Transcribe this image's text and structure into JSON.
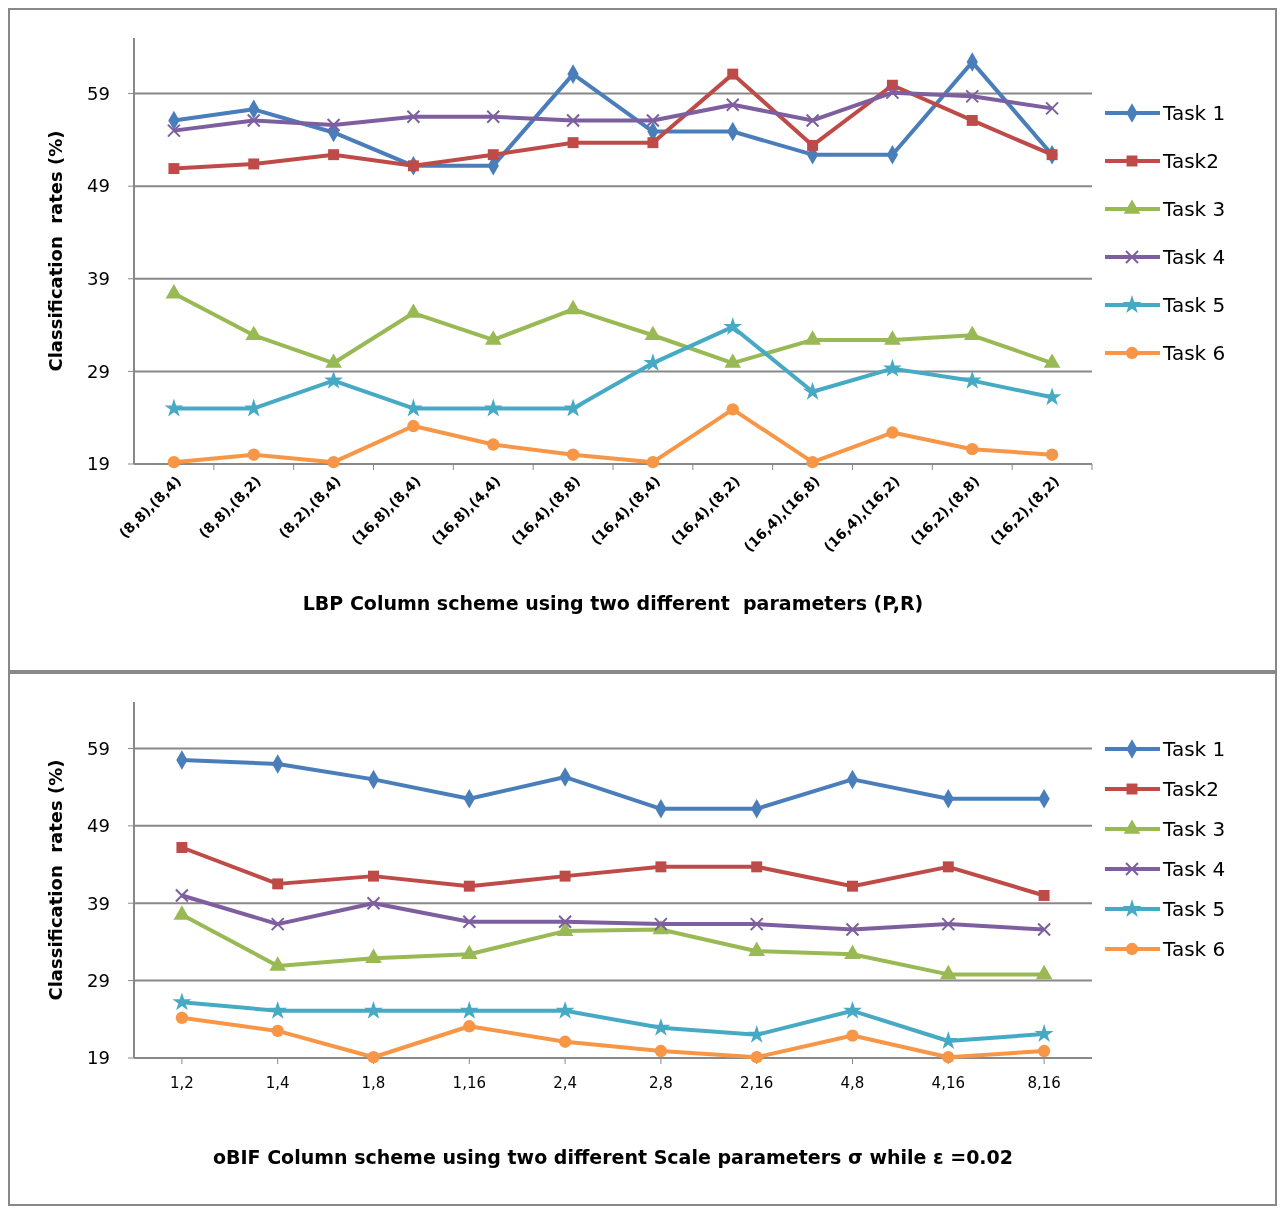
{
  "chart_data": [
    {
      "type": "line",
      "xlabel": "LBP Column scheme using two different  parameters (P,R)",
      "ylabel": "Classification  rates (%)",
      "categories": [
        "(8,8),(8,4)",
        "(8,8),(8,2)",
        "(8,2),(8,4)",
        "(16,8),(8,4)",
        "(16,8),(4,4)",
        "(16,4),(8,8)",
        "(16,4),(8,4)",
        "(16,4),(8,2)",
        "(16,4),(16,8)",
        "(16,4),(16,2)",
        "(16,2),(8,8)",
        "(16,2),(8,2)"
      ],
      "ylim": [
        19,
        65
      ],
      "yticks": [
        19,
        29,
        39,
        49,
        59
      ],
      "grid": "y",
      "legend": "right",
      "series": [
        {
          "name": "Task 1",
          "color": "#4a7ebb",
          "marker": "diamond",
          "values": [
            56.1,
            57.3,
            54.8,
            51.2,
            51.2,
            61.1,
            54.9,
            54.9,
            52.4,
            52.4,
            62.4,
            52.4
          ]
        },
        {
          "name": "Task2",
          "color": "#be4b48",
          "marker": "square",
          "values": [
            50.9,
            51.4,
            52.4,
            51.2,
            52.4,
            53.7,
            53.7,
            61.1,
            53.4,
            59.9,
            56.1,
            52.4
          ]
        },
        {
          "name": "Task 3",
          "color": "#98b954",
          "marker": "triangle",
          "values": [
            37.4,
            32.9,
            29.9,
            35.3,
            32.4,
            35.7,
            32.9,
            29.9,
            32.4,
            32.4,
            32.9,
            29.9
          ]
        },
        {
          "name": "Task 4",
          "color": "#7d5fa0",
          "marker": "cross",
          "values": [
            55.0,
            56.1,
            55.6,
            56.5,
            56.5,
            56.1,
            56.1,
            57.8,
            56.1,
            59.1,
            58.7,
            57.4
          ]
        },
        {
          "name": "Task 5",
          "color": "#46aac5",
          "marker": "star",
          "values": [
            25.0,
            25.0,
            28.0,
            25.0,
            25.0,
            25.0,
            29.9,
            33.8,
            26.8,
            29.3,
            28.0,
            26.2
          ]
        },
        {
          "name": "Task 6",
          "color": "#f79646",
          "marker": "circle",
          "values": [
            19.2,
            20.0,
            19.2,
            23.1,
            21.1,
            20.0,
            19.2,
            24.9,
            19.2,
            22.4,
            20.6,
            20.0
          ]
        }
      ]
    },
    {
      "type": "line",
      "xlabel": "oBIF Column scheme using two different Scale parameters σ while ε =0.02",
      "ylabel": "Classification  rates (%)",
      "categories": [
        "1,2",
        "1,4",
        "1,8",
        "1,16",
        "2,4",
        "2,8",
        "2,16",
        "4,8",
        "4,16",
        "8,16"
      ],
      "ylim": [
        19,
        65
      ],
      "yticks": [
        19,
        29,
        39,
        49,
        59
      ],
      "grid": "y",
      "legend": "right",
      "series": [
        {
          "name": "Task 1",
          "color": "#4a7ebb",
          "marker": "diamond",
          "values": [
            57.5,
            57.0,
            55.0,
            52.5,
            55.3,
            51.2,
            51.2,
            55.0,
            52.5,
            52.5
          ]
        },
        {
          "name": "Task2",
          "color": "#be4b48",
          "marker": "square",
          "values": [
            46.2,
            41.5,
            42.5,
            41.2,
            42.5,
            43.7,
            43.7,
            41.2,
            43.7,
            40.0
          ]
        },
        {
          "name": "Task 3",
          "color": "#98b954",
          "marker": "triangle",
          "values": [
            37.5,
            30.9,
            31.9,
            32.4,
            35.4,
            35.6,
            32.8,
            32.4,
            29.8,
            29.8
          ]
        },
        {
          "name": "Task 4",
          "color": "#7d5fa0",
          "marker": "cross",
          "values": [
            40.0,
            36.3,
            39.0,
            36.6,
            36.6,
            36.3,
            36.3,
            35.6,
            36.3,
            35.6
          ]
        },
        {
          "name": "Task 5",
          "color": "#46aac5",
          "marker": "star",
          "values": [
            26.2,
            25.1,
            25.1,
            25.1,
            25.1,
            22.9,
            22.0,
            25.1,
            21.2,
            22.1
          ]
        },
        {
          "name": "Task 6",
          "color": "#f79646",
          "marker": "circle",
          "values": [
            24.2,
            22.5,
            19.1,
            23.1,
            21.1,
            19.9,
            19.1,
            21.9,
            19.1,
            19.9
          ]
        }
      ]
    }
  ]
}
